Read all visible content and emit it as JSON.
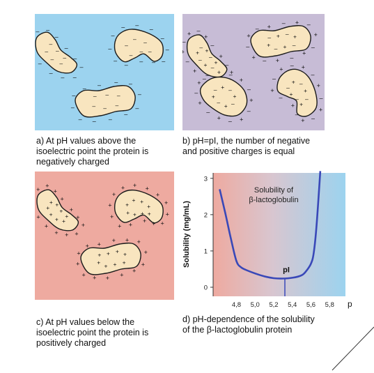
{
  "colors": {
    "panel_a_bg": "#9cd3ef",
    "panel_b_bg": "#c7bcd6",
    "panel_c_bg": "#eeaaa0",
    "protein_fill": "#f8e5bf",
    "curve": "#3948b8",
    "curve_bg_left": "#eeaaa0",
    "curve_bg_right": "#9cd3ef"
  },
  "captions": {
    "a": [
      "a) At pH values above the",
      "isoelectric point the protein is",
      "negatively charged"
    ],
    "b": [
      "b) pH=pI, the number of negative",
      "and positive charges is equal"
    ],
    "c": [
      "c) At pH values below the",
      "isoelectric point the protein is",
      "positively charged"
    ],
    "d": [
      "d) pH-dependence of the solubility",
      "of the β-lactoglobulin protein"
    ]
  },
  "symbols": {
    "negative": "–",
    "positive": "+"
  },
  "chart_data": {
    "type": "line",
    "title_lines": [
      "Solubility of",
      "β-lactoglobulin"
    ],
    "ylabel": "Solubility  (mg/mL)",
    "xlabel": "pH",
    "x_ticks": [
      "4,8",
      "5,0",
      "5,2",
      "5,4",
      "5,6",
      "5,8"
    ],
    "y_ticks": [
      "0",
      "1",
      "2",
      "3"
    ],
    "xlim": [
      4.55,
      5.97
    ],
    "ylim": [
      -0.25,
      3.15
    ],
    "annotation": "pI",
    "pI": 5.32,
    "x": [
      4.62,
      4.68,
      4.74,
      4.8,
      4.85,
      4.9,
      5.0,
      5.1,
      5.2,
      5.3,
      5.4,
      5.5,
      5.55,
      5.6,
      5.63,
      5.66,
      5.7
    ],
    "y": [
      2.7,
      2.05,
      1.35,
      0.72,
      0.55,
      0.48,
      0.38,
      0.3,
      0.25,
      0.24,
      0.26,
      0.33,
      0.45,
      0.65,
      0.95,
      1.7,
      3.2
    ],
    "grid": false
  }
}
